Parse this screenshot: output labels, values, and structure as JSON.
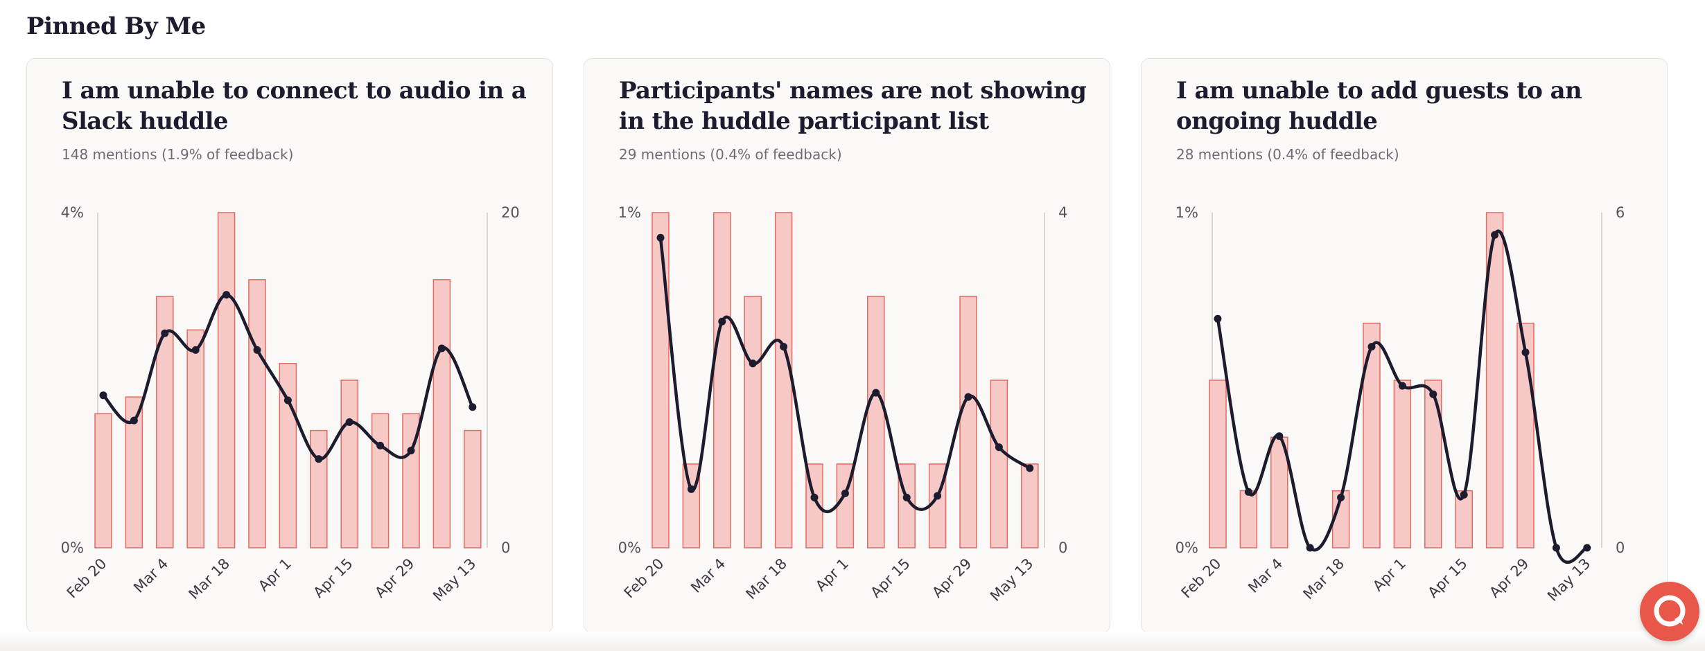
{
  "section": {
    "title": "Pinned By Me"
  },
  "colors": {
    "bar_fill": "#f7c9c6",
    "bar_stroke": "#e26b62",
    "line": "#1d1b2e",
    "axis": "#d9d6d2",
    "chat_button": "#e8574a"
  },
  "chat_button": {
    "icon": "chat-bubble-icon"
  },
  "cards": [
    {
      "title": "I am unable to connect to audio in a Slack huddle",
      "subtitle": "148 mentions (1.9% of feedback)"
    },
    {
      "title": "Participants' names are not showing in the huddle participant list",
      "subtitle": "29 mentions (0.4% of feedback)"
    },
    {
      "title": "I am unable to add guests to an ongoing huddle",
      "subtitle": "28 mentions (0.4% of feedback)"
    }
  ],
  "chart_data": [
    {
      "type": "bar",
      "left_axis": {
        "ticks": [
          "4%",
          "0%"
        ],
        "range": [
          0,
          4
        ]
      },
      "right_axis": {
        "ticks": [
          "20",
          "0"
        ],
        "range": [
          0,
          20
        ]
      },
      "x_tick_labels": [
        "Feb 20",
        "Mar 4",
        "Mar 18",
        "Apr 1",
        "Apr 15",
        "Apr 29",
        "May 13"
      ],
      "series": [
        {
          "values": [
            1.6,
            1.8,
            3.0,
            2.6,
            4.0,
            3.2,
            2.2,
            1.4,
            2.0,
            1.6,
            1.6,
            3.2,
            1.4
          ]
        },
        {
          "values": [
            9.1,
            7.6,
            12.8,
            11.8,
            15.1,
            11.8,
            8.8,
            5.3,
            7.5,
            6.1,
            5.8,
            11.9,
            8.4
          ]
        }
      ]
    },
    {
      "type": "bar",
      "left_axis": {
        "ticks": [
          "1%",
          "0%"
        ],
        "range": [
          0,
          1
        ]
      },
      "right_axis": {
        "ticks": [
          "4",
          "0"
        ],
        "range": [
          0,
          4
        ]
      },
      "x_tick_labels": [
        "Feb 20",
        "Mar 4",
        "Mar 18",
        "Apr 1",
        "Apr 15",
        "Apr 29",
        "May 13"
      ],
      "series": [
        {
          "values": [
            1.0,
            0.25,
            1.0,
            0.75,
            1.0,
            0.25,
            0.25,
            0.75,
            0.25,
            0.25,
            0.75,
            0.5,
            0.25
          ]
        },
        {
          "values": [
            3.7,
            0.7,
            2.7,
            2.2,
            2.4,
            0.6,
            0.65,
            1.85,
            0.6,
            0.62,
            1.8,
            1.2,
            0.95
          ]
        }
      ]
    },
    {
      "type": "bar",
      "left_axis": {
        "ticks": [
          "1%",
          "0%"
        ],
        "range": [
          0,
          1
        ]
      },
      "right_axis": {
        "ticks": [
          "6",
          "0"
        ],
        "range": [
          0,
          6
        ]
      },
      "x_tick_labels": [
        "Feb 20",
        "Mar 4",
        "Mar 18",
        "Apr 1",
        "Apr 15",
        "Apr 29",
        "May 13"
      ],
      "series": [
        {
          "values": [
            0.5,
            0.17,
            0.33,
            0.0,
            0.17,
            0.67,
            0.5,
            0.5,
            0.17,
            1.0,
            0.67,
            0.0,
            0.0
          ]
        },
        {
          "values": [
            4.1,
            1.0,
            2.0,
            0.0,
            0.9,
            3.6,
            2.9,
            2.75,
            0.95,
            5.6,
            3.5,
            0.0,
            0.0
          ]
        }
      ]
    }
  ]
}
